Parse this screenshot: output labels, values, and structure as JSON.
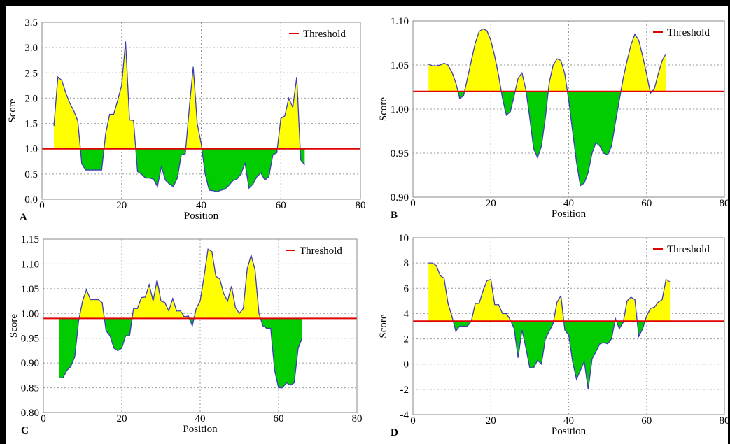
{
  "chart_data": [
    {
      "type": "area",
      "panel": "A",
      "xlabel": "Position",
      "ylabel": "Score",
      "threshold": 1.0,
      "threshold_name": "Threshold",
      "line_color": "#3d3db8",
      "above_color": "#ffff00",
      "below_color": "#00cc00",
      "threshold_color": "#e00000",
      "grid": true,
      "xlim": [
        0,
        80
      ],
      "xticks": [
        0,
        20,
        40,
        60,
        80
      ],
      "ylim": [
        0,
        3.5
      ],
      "yticks": [
        {
          "value": 0,
          "label": "0.0"
        },
        0.5,
        {
          "value": 1,
          "label": "1.0"
        },
        1.5,
        {
          "value": 2,
          "label": "2.0"
        },
        2.5,
        {
          "value": 3,
          "label": "3.0"
        },
        3.5
      ],
      "x": [
        3,
        4,
        5,
        6,
        7,
        8,
        9,
        10,
        11,
        12,
        13,
        14,
        15,
        16,
        17,
        18,
        19,
        20,
        21,
        22,
        23,
        24,
        25,
        26,
        27,
        28,
        29,
        30,
        31,
        32,
        33,
        34,
        35,
        36,
        37,
        38,
        39,
        40,
        41,
        42,
        43,
        44,
        45,
        46,
        47,
        48,
        49,
        50,
        51,
        52,
        53,
        54,
        55,
        56,
        57,
        58,
        59,
        60,
        61,
        62,
        63,
        64,
        65,
        66
      ],
      "values": [
        1.45,
        2.42,
        2.35,
        2.1,
        1.9,
        1.75,
        1.55,
        0.7,
        0.58,
        0.58,
        0.58,
        0.58,
        0.58,
        1.3,
        1.68,
        1.68,
        1.95,
        2.25,
        3.12,
        1.57,
        1.56,
        0.55,
        0.5,
        0.42,
        0.42,
        0.4,
        0.25,
        0.65,
        0.38,
        0.3,
        0.25,
        0.42,
        0.88,
        0.9,
        1.8,
        2.62,
        1.5,
        1.1,
        0.5,
        0.18,
        0.17,
        0.15,
        0.18,
        0.2,
        0.28,
        0.37,
        0.4,
        0.5,
        0.72,
        0.22,
        0.3,
        0.45,
        0.52,
        0.38,
        0.45,
        0.88,
        0.92,
        1.6,
        1.65,
        2.0,
        1.82,
        2.42,
        0.78,
        0.68
      ]
    },
    {
      "type": "area",
      "panel": "B",
      "xlabel": "Position",
      "ylabel": "Score",
      "threshold": 1.02,
      "threshold_name": "Threshold",
      "line_color": "#3d3db8",
      "above_color": "#ffff00",
      "below_color": "#00cc00",
      "threshold_color": "#e00000",
      "grid": true,
      "xlim": [
        0,
        80
      ],
      "xticks": [
        0,
        20,
        40,
        60,
        80
      ],
      "ylim": [
        0.9,
        1.1
      ],
      "yticks": [
        {
          "value": 0.9,
          "label": "0.90"
        },
        0.95,
        {
          "value": 1,
          "label": "1.00"
        },
        1.05,
        {
          "value": 1.1,
          "label": "1.10"
        }
      ],
      "x": [
        4,
        5,
        6,
        7,
        8,
        9,
        10,
        11,
        12,
        13,
        14,
        15,
        16,
        17,
        18,
        19,
        20,
        21,
        22,
        23,
        24,
        25,
        26,
        27,
        28,
        29,
        30,
        31,
        32,
        33,
        34,
        35,
        36,
        37,
        38,
        39,
        40,
        41,
        42,
        43,
        44,
        45,
        46,
        47,
        48,
        49,
        50,
        51,
        52,
        53,
        54,
        55,
        56,
        57,
        58,
        59,
        60,
        61,
        62,
        63,
        64,
        65
      ],
      "values": [
        1.051,
        1.049,
        1.049,
        1.05,
        1.052,
        1.05,
        1.042,
        1.03,
        1.012,
        1.015,
        1.035,
        1.055,
        1.075,
        1.088,
        1.091,
        1.089,
        1.078,
        1.06,
        1.038,
        1.012,
        0.993,
        0.997,
        1.015,
        1.035,
        1.041,
        1.022,
        0.99,
        0.955,
        0.945,
        0.958,
        0.99,
        1.03,
        1.05,
        1.057,
        1.055,
        1.04,
        1.01,
        0.975,
        0.94,
        0.913,
        0.916,
        0.928,
        0.95,
        0.962,
        0.958,
        0.95,
        0.948,
        0.958,
        0.985,
        1.01,
        1.035,
        1.055,
        1.073,
        1.085,
        1.078,
        1.06,
        1.04,
        1.018,
        1.023,
        1.04,
        1.055,
        1.063
      ]
    },
    {
      "type": "area",
      "panel": "C",
      "xlabel": "Position",
      "ylabel": "Score",
      "threshold": 0.99,
      "threshold_name": "Threshold",
      "line_color": "#3d3db8",
      "above_color": "#ffff00",
      "below_color": "#00cc00",
      "threshold_color": "#e00000",
      "grid": true,
      "xlim": [
        0,
        80
      ],
      "xticks": [
        0,
        20,
        40,
        60,
        80
      ],
      "ylim": [
        0.8,
        1.15
      ],
      "yticks": [
        {
          "value": 0.8,
          "label": "0.80"
        },
        0.85,
        {
          "value": 0.9,
          "label": "0.90"
        },
        0.95,
        {
          "value": 1,
          "label": "1.00"
        },
        1.05,
        {
          "value": 1.1,
          "label": "1.10"
        },
        1.15
      ],
      "x": [
        4,
        5,
        6,
        7,
        8,
        9,
        10,
        11,
        12,
        13,
        14,
        15,
        16,
        17,
        18,
        19,
        20,
        21,
        22,
        23,
        24,
        25,
        26,
        27,
        28,
        29,
        30,
        31,
        32,
        33,
        34,
        35,
        36,
        37,
        38,
        39,
        40,
        41,
        42,
        43,
        44,
        45,
        46,
        47,
        48,
        49,
        50,
        51,
        52,
        53,
        54,
        55,
        56,
        57,
        58,
        59,
        60,
        61,
        62,
        63,
        64,
        65,
        66
      ],
      "values": [
        0.87,
        0.87,
        0.885,
        0.893,
        0.912,
        0.985,
        1.025,
        1.048,
        1.028,
        1.028,
        1.028,
        1.022,
        0.965,
        0.955,
        0.93,
        0.925,
        0.93,
        0.955,
        0.955,
        1.01,
        1.01,
        1.032,
        1.033,
        1.058,
        1.025,
        1.068,
        1.025,
        1.022,
        1.005,
        1.03,
        1.005,
        1.005,
        0.993,
        0.995,
        0.975,
        1.01,
        1.025,
        1.075,
        1.13,
        1.125,
        1.075,
        1.07,
        1.04,
        1.025,
        1.055,
        1.012,
        1.0,
        1.01,
        1.09,
        1.118,
        1.088,
        1.0,
        0.975,
        0.97,
        0.97,
        0.885,
        0.85,
        0.85,
        0.86,
        0.855,
        0.86,
        0.93,
        0.95
      ]
    },
    {
      "type": "area",
      "panel": "D",
      "xlabel": "Position",
      "ylabel": "Score",
      "threshold": 3.4,
      "threshold_name": "Threshold",
      "line_color": "#3d3db8",
      "above_color": "#ffff00",
      "below_color": "#00cc00",
      "threshold_color": "#e00000",
      "grid": true,
      "xlim": [
        0,
        80
      ],
      "xticks": [
        0,
        20,
        40,
        60,
        80
      ],
      "ylim": [
        -4,
        10
      ],
      "yticks": [
        -4,
        -2,
        0,
        2,
        4,
        6,
        8,
        10
      ],
      "x": [
        4,
        5,
        6,
        7,
        8,
        9,
        10,
        11,
        12,
        13,
        14,
        15,
        16,
        17,
        18,
        19,
        20,
        21,
        22,
        23,
        24,
        25,
        26,
        27,
        28,
        29,
        30,
        31,
        32,
        33,
        34,
        35,
        36,
        37,
        38,
        39,
        40,
        41,
        42,
        43,
        44,
        45,
        46,
        47,
        48,
        49,
        50,
        51,
        52,
        53,
        54,
        55,
        56,
        57,
        58,
        59,
        60,
        61,
        62,
        63,
        64,
        65,
        66
      ],
      "values": [
        8.0,
        8.0,
        7.8,
        7.0,
        6.8,
        4.8,
        3.8,
        2.6,
        3.0,
        3.0,
        3.0,
        3.4,
        4.8,
        4.8,
        5.8,
        6.6,
        6.7,
        4.7,
        4.7,
        4.0,
        4.0,
        3.5,
        2.8,
        0.5,
        2.7,
        1.3,
        -0.3,
        -0.3,
        0.3,
        0.0,
        2.0,
        2.6,
        3.2,
        4.9,
        5.4,
        2.7,
        2.3,
        0.2,
        -1.2,
        -0.5,
        0.2,
        -2.0,
        0.4,
        1.0,
        1.6,
        1.7,
        1.6,
        2.0,
        3.6,
        2.8,
        3.3,
        5.0,
        5.3,
        5.1,
        2.2,
        2.8,
        3.8,
        4.4,
        4.5,
        4.9,
        5.1,
        6.7,
        6.5
      ]
    }
  ]
}
